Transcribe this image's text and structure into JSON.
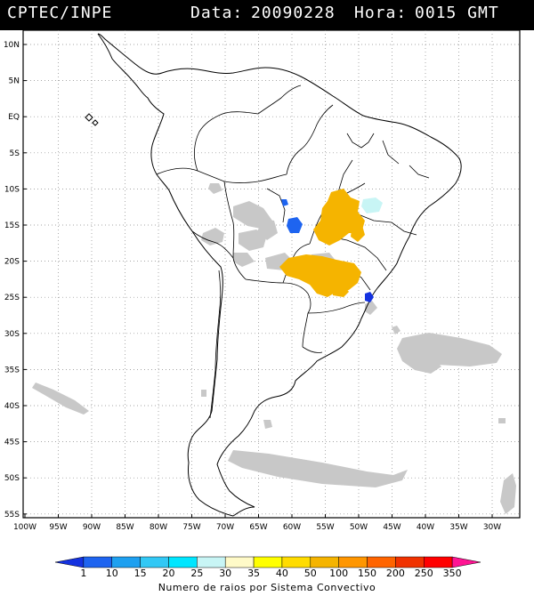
{
  "header": {
    "source": "CPTEC/INPE",
    "data_label": "Data:",
    "date": "20090228",
    "hora_label": "Hora:",
    "time": "0015 GMT"
  },
  "map": {
    "lat_labels": [
      "10N",
      "5N",
      "EQ",
      "5S",
      "10S",
      "15S",
      "20S",
      "25S",
      "30S",
      "35S",
      "40S",
      "45S",
      "50S",
      "55S"
    ],
    "lon_labels": [
      "100W",
      "95W",
      "90W",
      "85W",
      "80W",
      "75W",
      "70W",
      "65W",
      "60W",
      "55W",
      "50W",
      "45W",
      "40W",
      "35W",
      "30W"
    ],
    "gridlines": "dotted",
    "cloud_color": "#c8c8c8",
    "boundary_color": "#000000"
  },
  "legend": {
    "title": "Numero de raios por Sistema Convectivo",
    "ticks": [
      "1",
      "10",
      "15",
      "20",
      "25",
      "30",
      "35",
      "40",
      "50",
      "100",
      "150",
      "200",
      "250",
      "350"
    ],
    "colors": [
      "#1432e0",
      "#1e64f0",
      "#1ea0f0",
      "#32c8f5",
      "#00e6ff",
      "#c8f5f5",
      "#fffac8",
      "#ffff00",
      "#ffdc00",
      "#f5b400",
      "#ff9600",
      "#ff6400",
      "#f03200",
      "#ff0000",
      "#ff1493"
    ]
  },
  "features": [
    {
      "kind": "lightning-cluster",
      "color": "#f5b400",
      "location": "Central Brazil (Goias / Bahia)"
    },
    {
      "kind": "lightning-cluster",
      "color": "#f5b400",
      "location": "Mato Grosso do Sul / Sao Paulo"
    },
    {
      "kind": "lightning-cluster",
      "color": "#1e64f0",
      "location": "Mato Grosso"
    },
    {
      "kind": "lightning-cluster",
      "color": "#c8f5f5",
      "location": "Bahia"
    },
    {
      "kind": "lightning-cluster",
      "color": "#1432e0",
      "location": "Parana coast"
    }
  ]
}
